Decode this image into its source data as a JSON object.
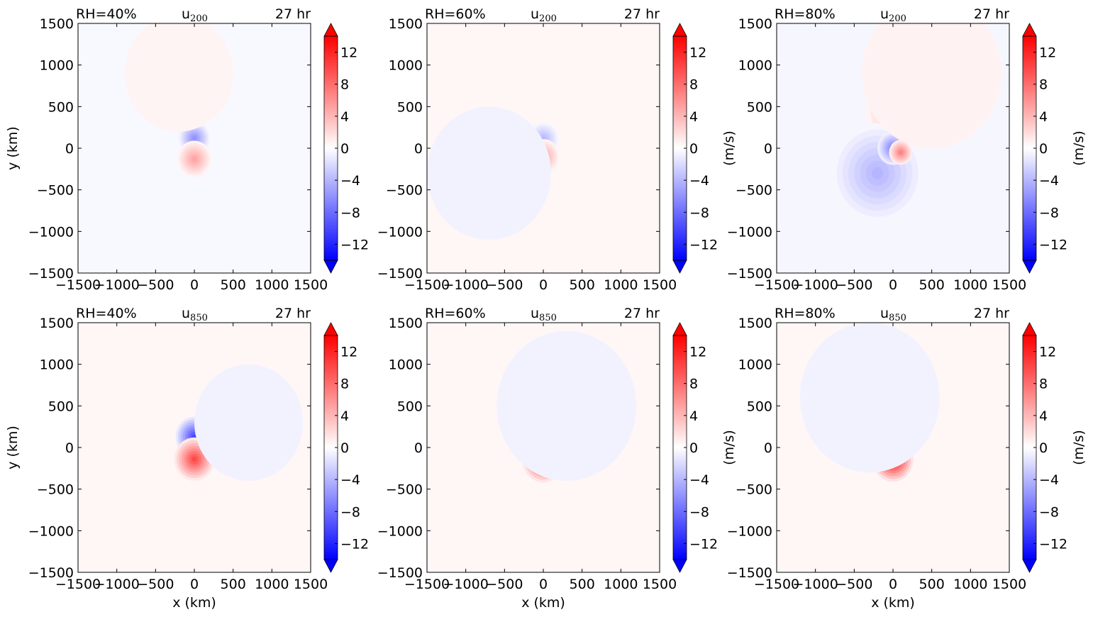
{
  "figure": {
    "time_label": "27 hr",
    "colorbar": {
      "label": "(m/s)",
      "ticks": [
        12,
        8,
        4,
        0,
        -4,
        -8,
        -12
      ],
      "tick_labels": [
        "12",
        "8",
        "4",
        "0",
        "−4",
        "−8",
        "−12"
      ],
      "vmin": -14,
      "vmax": 14,
      "extend": "both",
      "colormap": "bwr",
      "colors": {
        "low": "#0000ff",
        "mid": "#ffffff",
        "high": "#ff0000"
      }
    }
  },
  "chart_data": [
    {
      "type": "heatmap",
      "rh_label": "RH=40%",
      "var_base": "u",
      "var_sub": "200",
      "time_label": "27 hr",
      "xlabel": "",
      "ylabel": "y (km)",
      "xlim": [
        -1500,
        1500
      ],
      "ylim": [
        -1500,
        1500
      ],
      "xticks": [
        -1500,
        -1000,
        -500,
        0,
        500,
        1000,
        1500
      ],
      "yticks": [
        -1500,
        -1000,
        -500,
        0,
        500,
        1000,
        1500
      ],
      "xtick_labels": [
        "−1500",
        "−1000",
        "−500",
        "0",
        "500",
        "1000",
        "1500"
      ],
      "ytick_labels": [
        "−1500",
        "−1000",
        "−500",
        "0",
        "500",
        "1000",
        "1500"
      ],
      "cbar_label": "",
      "background": -0.4,
      "features": [
        {
          "x": 0,
          "y": 120,
          "r": 200,
          "value": -6
        },
        {
          "x": 0,
          "y": -130,
          "r": 220,
          "value": 5
        },
        {
          "x": -200,
          "y": 900,
          "r": 700,
          "value": 0.6
        }
      ]
    },
    {
      "type": "heatmap",
      "rh_label": "RH=60%",
      "var_base": "u",
      "var_sub": "200",
      "time_label": "27 hr",
      "xlabel": "",
      "ylabel": "",
      "xlim": [
        -1500,
        1500
      ],
      "ylim": [
        -1500,
        1500
      ],
      "xticks": [
        -1500,
        -1000,
        -500,
        0,
        500,
        1000,
        1500
      ],
      "yticks": [
        -1500,
        -1000,
        -500,
        0,
        500,
        1000,
        1500
      ],
      "xtick_labels": [
        "−1500",
        "−1000",
        "−500",
        "0",
        "500",
        "1000",
        "1500"
      ],
      "ytick_labels": [
        "−1500",
        "−1000",
        "−500",
        "0",
        "500",
        "1000",
        "1500"
      ],
      "cbar_label": "(m/s)",
      "background": 0.5,
      "features": [
        {
          "x": 0,
          "y": 110,
          "r": 200,
          "value": -4
        },
        {
          "x": 0,
          "y": -100,
          "r": 210,
          "value": 5
        },
        {
          "x": -700,
          "y": -300,
          "r": 800,
          "value": -0.7
        }
      ]
    },
    {
      "type": "heatmap",
      "rh_label": "RH=80%",
      "var_base": "u",
      "var_sub": "200",
      "time_label": "27 hr",
      "xlabel": "",
      "ylabel": "",
      "xlim": [
        -1500,
        1500
      ],
      "ylim": [
        -1500,
        1500
      ],
      "xticks": [
        -1500,
        -1000,
        -500,
        0,
        500,
        1000,
        1500
      ],
      "yticks": [
        -1500,
        -1000,
        -500,
        0,
        500,
        1000,
        1500
      ],
      "xtick_labels": [
        "−1500",
        "−1000",
        "−500",
        "0",
        "500",
        "1000",
        "1500"
      ],
      "ytick_labels": [
        "−1500",
        "−1000",
        "−500",
        "0",
        "500",
        "1000",
        "1500"
      ],
      "cbar_label": "(m/s)",
      "background": -0.5,
      "features": [
        {
          "x": 150,
          "y": 450,
          "r": 500,
          "value": 5
        },
        {
          "x": -200,
          "y": -300,
          "r": 600,
          "value": -4
        },
        {
          "x": 0,
          "y": 0,
          "r": 200,
          "value": -7
        },
        {
          "x": 100,
          "y": -50,
          "r": 150,
          "value": 7
        },
        {
          "x": 500,
          "y": 900,
          "r": 900,
          "value": 0.7
        }
      ]
    },
    {
      "type": "heatmap",
      "rh_label": "RH=40%",
      "var_base": "u",
      "var_sub": "850",
      "time_label": "27 hr",
      "xlabel": "x (km)",
      "ylabel": "y (km)",
      "xlim": [
        -1500,
        1500
      ],
      "ylim": [
        -1500,
        1500
      ],
      "xticks": [
        -1500,
        -1000,
        -500,
        0,
        500,
        1000,
        1500
      ],
      "yticks": [
        -1500,
        -1000,
        -500,
        0,
        500,
        1000,
        1500
      ],
      "xtick_labels": [
        "−1500",
        "−1000",
        "−500",
        "0",
        "500",
        "1000",
        "1500"
      ],
      "ytick_labels": [
        "−1500",
        "−1000",
        "−500",
        "0",
        "500",
        "1000",
        "1500"
      ],
      "cbar_label": "",
      "background": 0.5,
      "features": [
        {
          "x": 0,
          "y": 130,
          "r": 240,
          "value": -10
        },
        {
          "x": 0,
          "y": -140,
          "r": 260,
          "value": 10
        },
        {
          "x": 700,
          "y": 300,
          "r": 700,
          "value": -0.7
        }
      ]
    },
    {
      "type": "heatmap",
      "rh_label": "RH=60%",
      "var_base": "u",
      "var_sub": "850",
      "time_label": "27 hr",
      "xlabel": "x (km)",
      "ylabel": "",
      "xlim": [
        -1500,
        1500
      ],
      "ylim": [
        -1500,
        1500
      ],
      "xticks": [
        -1500,
        -1000,
        -500,
        0,
        500,
        1000,
        1500
      ],
      "yticks": [
        -1500,
        -1000,
        -500,
        0,
        500,
        1000,
        1500
      ],
      "xtick_labels": [
        "−1500",
        "−1000",
        "−500",
        "0",
        "500",
        "1000",
        "1500"
      ],
      "ytick_labels": [
        "−1500",
        "−1000",
        "−500",
        "0",
        "500",
        "1000",
        "1500"
      ],
      "cbar_label": "(m/s)",
      "background": 0.5,
      "features": [
        {
          "x": 0,
          "y": 140,
          "r": 250,
          "value": -11
        },
        {
          "x": 0,
          "y": -150,
          "r": 270,
          "value": 11
        },
        {
          "x": 300,
          "y": 500,
          "r": 900,
          "value": -0.7
        }
      ]
    },
    {
      "type": "heatmap",
      "rh_label": "RH=80%",
      "var_base": "u",
      "var_sub": "850",
      "time_label": "27 hr",
      "xlabel": "x (km)",
      "ylabel": "",
      "xlim": [
        -1500,
        1500
      ],
      "ylim": [
        -1500,
        1500
      ],
      "xticks": [
        -1500,
        -1000,
        -500,
        0,
        500,
        1000,
        1500
      ],
      "yticks": [
        -1500,
        -1000,
        -500,
        0,
        500,
        1000,
        1500
      ],
      "xtick_labels": [
        "−1500",
        "−1000",
        "−500",
        "0",
        "500",
        "1000",
        "1500"
      ],
      "ytick_labels": [
        "−1500",
        "−1000",
        "−500",
        "0",
        "500",
        "1000",
        "1500"
      ],
      "cbar_label": "(m/s)",
      "background": 0.5,
      "features": [
        {
          "x": 0,
          "y": 150,
          "r": 220,
          "value": -13
        },
        {
          "x": 0,
          "y": -150,
          "r": 260,
          "value": 13
        },
        {
          "x": -300,
          "y": 600,
          "r": 900,
          "value": -0.7
        }
      ]
    }
  ]
}
